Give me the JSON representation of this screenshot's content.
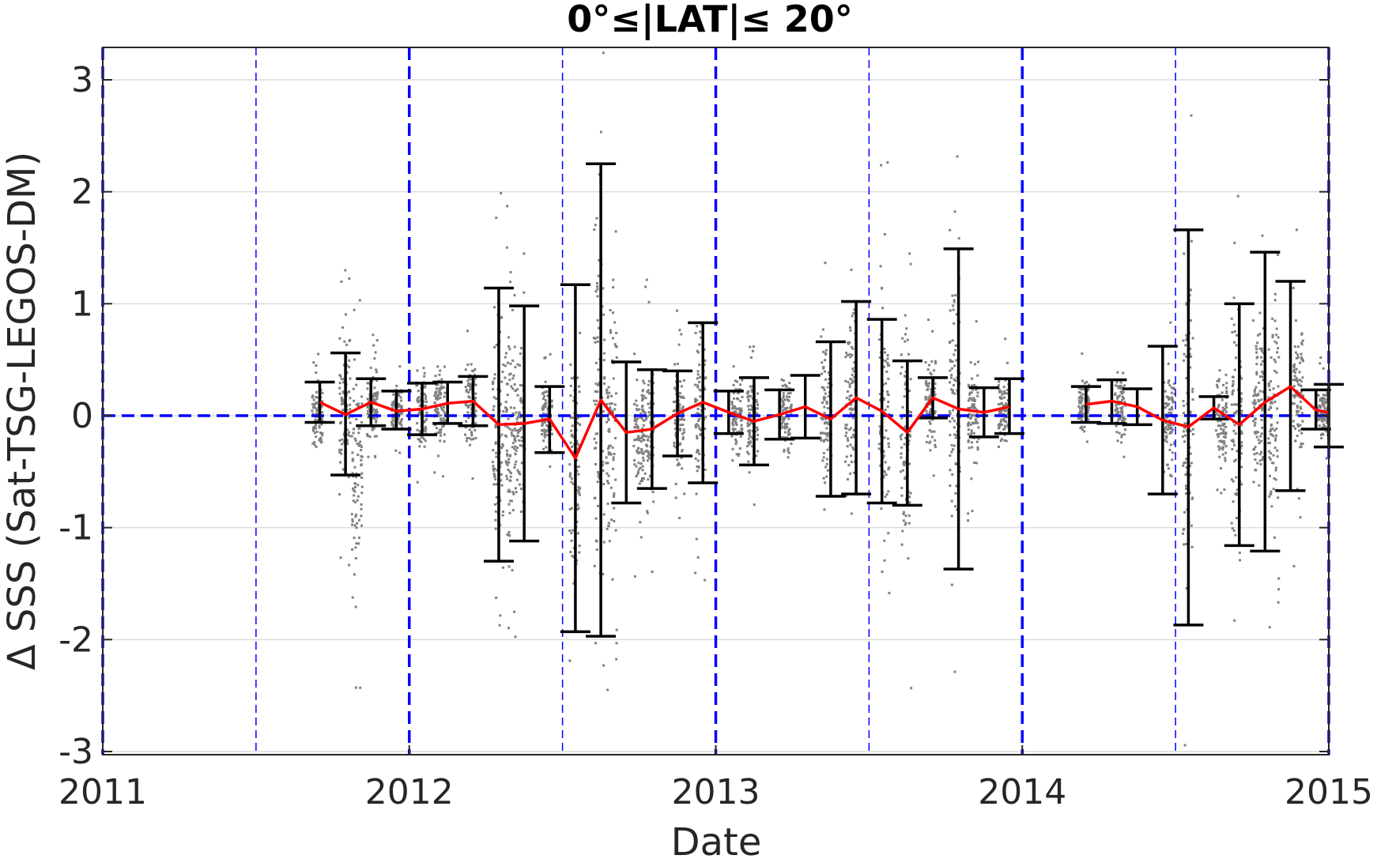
{
  "chart_data": {
    "type": "scatter",
    "title": "0°≤|LAT|≤ 20°",
    "xlabel": "Date",
    "ylabel": "Δ SSS (Sat-TSG-LEGOS-DM)",
    "xlim": [
      2011,
      2015
    ],
    "ylim": [
      -3,
      3
    ],
    "x_ticks": [
      "2011",
      "2012",
      "2013",
      "2014",
      "2015"
    ],
    "y_ticks": [
      "-3",
      "-2",
      "-1",
      "0",
      "1",
      "2",
      "3"
    ],
    "grid": "horizontal",
    "year_lines": [
      2011,
      2012,
      2013,
      2014,
      2015
    ],
    "half_year_lines": [
      2011.5,
      2012.5,
      2013.5,
      2014.5
    ],
    "zero_line": 0,
    "colors": {
      "mean_line": "#ff0000",
      "error_bars": "#000000",
      "points": "#808080",
      "reference_lines": "#0000ff"
    },
    "monthly": [
      {
        "x": 2011.708,
        "mean": 0.12,
        "upper": 0.3,
        "lower": -0.06
      },
      {
        "x": 2011.792,
        "mean": 0.01,
        "upper": 0.56,
        "lower": -0.53
      },
      {
        "x": 2011.875,
        "mean": 0.12,
        "upper": 0.33,
        "lower": -0.09
      },
      {
        "x": 2011.958,
        "mean": 0.04,
        "upper": 0.22,
        "lower": -0.12
      },
      {
        "x": 2012.042,
        "mean": 0.06,
        "upper": 0.29,
        "lower": -0.17
      },
      {
        "x": 2012.125,
        "mean": 0.11,
        "upper": 0.3,
        "lower": -0.07
      },
      {
        "x": 2012.208,
        "mean": 0.13,
        "upper": 0.35,
        "lower": -0.09
      },
      {
        "x": 2012.292,
        "mean": -0.08,
        "upper": 1.14,
        "lower": -1.3
      },
      {
        "x": 2012.375,
        "mean": -0.07,
        "upper": 0.98,
        "lower": -1.12
      },
      {
        "x": 2012.458,
        "mean": -0.03,
        "upper": 0.26,
        "lower": -0.33
      },
      {
        "x": 2012.542,
        "mean": -0.38,
        "upper": 1.17,
        "lower": -1.93
      },
      {
        "x": 2012.625,
        "mean": 0.14,
        "upper": 2.25,
        "lower": -1.97
      },
      {
        "x": 2012.708,
        "mean": -0.15,
        "upper": 0.48,
        "lower": -0.78
      },
      {
        "x": 2012.792,
        "mean": -0.12,
        "upper": 0.41,
        "lower": -0.65
      },
      {
        "x": 2012.875,
        "mean": 0.02,
        "upper": 0.4,
        "lower": -0.36
      },
      {
        "x": 2012.958,
        "mean": 0.12,
        "upper": 0.83,
        "lower": -0.6
      },
      {
        "x": 2013.042,
        "mean": 0.03,
        "upper": 0.22,
        "lower": -0.16
      },
      {
        "x": 2013.125,
        "mean": -0.05,
        "upper": 0.34,
        "lower": -0.44
      },
      {
        "x": 2013.208,
        "mean": 0.01,
        "upper": 0.23,
        "lower": -0.21
      },
      {
        "x": 2013.292,
        "mean": 0.08,
        "upper": 0.36,
        "lower": -0.2
      },
      {
        "x": 2013.375,
        "mean": -0.03,
        "upper": 0.66,
        "lower": -0.72
      },
      {
        "x": 2013.458,
        "mean": 0.16,
        "upper": 1.02,
        "lower": -0.7
      },
      {
        "x": 2013.542,
        "mean": 0.04,
        "upper": 0.86,
        "lower": -0.78
      },
      {
        "x": 2013.625,
        "mean": -0.15,
        "upper": 0.49,
        "lower": -0.8
      },
      {
        "x": 2013.708,
        "mean": 0.16,
        "upper": 0.34,
        "lower": -0.02
      },
      {
        "x": 2013.792,
        "mean": 0.06,
        "upper": 1.49,
        "lower": -1.37
      },
      {
        "x": 2013.875,
        "mean": 0.03,
        "upper": 0.25,
        "lower": -0.19
      },
      {
        "x": 2013.958,
        "mean": 0.08,
        "upper": 0.33,
        "lower": -0.16
      },
      {
        "x": 2014.208,
        "mean": 0.1,
        "upper": 0.26,
        "lower": -0.06
      },
      {
        "x": 2014.292,
        "mean": 0.13,
        "upper": 0.32,
        "lower": -0.07
      },
      {
        "x": 2014.375,
        "mean": 0.08,
        "upper": 0.24,
        "lower": -0.08
      },
      {
        "x": 2014.458,
        "mean": -0.04,
        "upper": 0.62,
        "lower": -0.7
      },
      {
        "x": 2014.542,
        "mean": -0.1,
        "upper": 1.66,
        "lower": -1.87
      },
      {
        "x": 2014.625,
        "mean": 0.07,
        "upper": 0.17,
        "lower": -0.03
      },
      {
        "x": 2014.708,
        "mean": -0.08,
        "upper": 1.0,
        "lower": -1.16
      },
      {
        "x": 2014.792,
        "mean": 0.12,
        "upper": 1.46,
        "lower": -1.21
      },
      {
        "x": 2014.875,
        "mean": 0.26,
        "upper": 1.2,
        "lower": -0.67
      },
      {
        "x": 2014.958,
        "mean": 0.05,
        "upper": 0.23,
        "lower": -0.12
      },
      {
        "x": 2015.0,
        "mean": 0.03,
        "upper": 0.28,
        "lower": -0.28
      }
    ],
    "scatter_clusters": [
      {
        "x": 2011.7,
        "center": 0.0,
        "spread": 0.35
      },
      {
        "x": 2011.79,
        "center": 0.1,
        "spread": 0.9
      },
      {
        "x": 2011.83,
        "center": -0.5,
        "spread": 1.3
      },
      {
        "x": 2011.88,
        "center": 0.1,
        "spread": 0.4
      },
      {
        "x": 2011.96,
        "center": 0.05,
        "spread": 0.25
      },
      {
        "x": 2012.04,
        "center": 0.0,
        "spread": 0.5
      },
      {
        "x": 2012.1,
        "center": 0.1,
        "spread": 0.5
      },
      {
        "x": 2012.2,
        "center": 0.1,
        "spread": 0.5
      },
      {
        "x": 2012.29,
        "center": -0.1,
        "spread": 1.5
      },
      {
        "x": 2012.33,
        "center": -0.2,
        "spread": 1.3
      },
      {
        "x": 2012.36,
        "center": -0.1,
        "spread": 1.0
      },
      {
        "x": 2012.45,
        "center": 0.0,
        "spread": 0.4
      },
      {
        "x": 2012.54,
        "center": -0.4,
        "spread": 1.4
      },
      {
        "x": 2012.62,
        "center": 0.1,
        "spread": 2.5
      },
      {
        "x": 2012.66,
        "center": 0.0,
        "spread": 1.6
      },
      {
        "x": 2012.75,
        "center": -0.2,
        "spread": 0.8
      },
      {
        "x": 2012.78,
        "center": -0.1,
        "spread": 0.9
      },
      {
        "x": 2012.88,
        "center": 0.0,
        "spread": 0.6
      },
      {
        "x": 2012.95,
        "center": 0.1,
        "spread": 1.0
      },
      {
        "x": 2013.07,
        "center": 0.0,
        "spread": 0.4
      },
      {
        "x": 2013.12,
        "center": -0.05,
        "spread": 0.5
      },
      {
        "x": 2013.23,
        "center": 0.0,
        "spread": 0.5
      },
      {
        "x": 2013.36,
        "center": 0.0,
        "spread": 0.9
      },
      {
        "x": 2013.44,
        "center": 0.2,
        "spread": 1.2
      },
      {
        "x": 2013.55,
        "center": 0.0,
        "spread": 1.5
      },
      {
        "x": 2013.62,
        "center": -0.2,
        "spread": 1.4
      },
      {
        "x": 2013.7,
        "center": 0.1,
        "spread": 0.5
      },
      {
        "x": 2013.78,
        "center": 0.1,
        "spread": 1.5
      },
      {
        "x": 2013.84,
        "center": 0.0,
        "spread": 0.6
      },
      {
        "x": 2013.94,
        "center": 0.05,
        "spread": 0.4
      },
      {
        "x": 2014.2,
        "center": 0.1,
        "spread": 0.3
      },
      {
        "x": 2014.32,
        "center": 0.1,
        "spread": 0.4
      },
      {
        "x": 2014.48,
        "center": 0.0,
        "spread": 0.6
      },
      {
        "x": 2014.54,
        "center": -0.1,
        "spread": 2.0
      },
      {
        "x": 2014.65,
        "center": 0.0,
        "spread": 0.6
      },
      {
        "x": 2014.7,
        "center": 0.0,
        "spread": 1.4
      },
      {
        "x": 2014.77,
        "center": 0.1,
        "spread": 1.2
      },
      {
        "x": 2014.82,
        "center": 0.1,
        "spread": 1.3
      },
      {
        "x": 2014.9,
        "center": 0.2,
        "spread": 1.0
      },
      {
        "x": 2014.98,
        "center": 0.05,
        "spread": 0.3
      }
    ]
  }
}
